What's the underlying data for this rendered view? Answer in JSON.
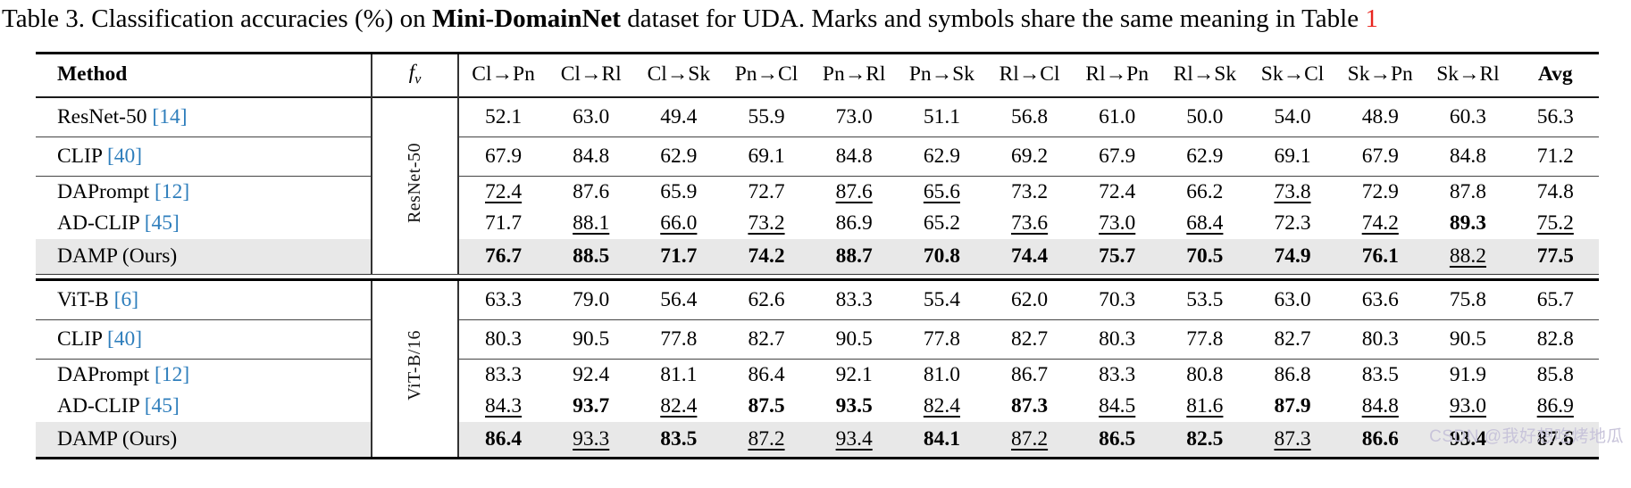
{
  "caption": {
    "prefix": "Table 3. Classification accuracies (%) on ",
    "dataset": "Mini-DomainNet",
    "middle": " dataset for UDA. Marks and symbols share the same meaning in Table ",
    "table_ref": "1"
  },
  "table": {
    "headers": {
      "method": "Method",
      "fv_main": "f",
      "fv_sub": "v",
      "columns": [
        "Cl→Pn",
        "Cl→Rl",
        "Cl→Sk",
        "Pn→Cl",
        "Pn→Rl",
        "Pn→Sk",
        "Rl→Cl",
        "Rl→Pn",
        "Rl→Sk",
        "Sk→Cl",
        "Sk→Pn",
        "Sk→Rl",
        "Avg"
      ]
    },
    "blocks": [
      {
        "backbone": "ResNet-50",
        "rows": [
          {
            "method": "ResNet-50",
            "ref": "[14]",
            "highlight": false,
            "rule_below": true,
            "cells": [
              [
                "52.1",
                "p"
              ],
              [
                "63.0",
                "p"
              ],
              [
                "49.4",
                "p"
              ],
              [
                "55.9",
                "p"
              ],
              [
                "73.0",
                "p"
              ],
              [
                "51.1",
                "p"
              ],
              [
                "56.8",
                "p"
              ],
              [
                "61.0",
                "p"
              ],
              [
                "50.0",
                "p"
              ],
              [
                "54.0",
                "p"
              ],
              [
                "48.9",
                "p"
              ],
              [
                "60.3",
                "p"
              ],
              [
                "56.3",
                "p"
              ]
            ]
          },
          {
            "method": "CLIP",
            "ref": "[40]",
            "highlight": false,
            "rule_below": true,
            "cells": [
              [
                "67.9",
                "p"
              ],
              [
                "84.8",
                "p"
              ],
              [
                "62.9",
                "p"
              ],
              [
                "69.1",
                "p"
              ],
              [
                "84.8",
                "p"
              ],
              [
                "62.9",
                "p"
              ],
              [
                "69.2",
                "p"
              ],
              [
                "67.9",
                "p"
              ],
              [
                "62.9",
                "p"
              ],
              [
                "69.1",
                "p"
              ],
              [
                "67.9",
                "p"
              ],
              [
                "84.8",
                "p"
              ],
              [
                "71.2",
                "p"
              ]
            ]
          },
          {
            "method": "DAPrompt",
            "ref": "[12]",
            "highlight": false,
            "rule_below": false,
            "cells": [
              [
                "72.4",
                "u"
              ],
              [
                "87.6",
                "p"
              ],
              [
                "65.9",
                "p"
              ],
              [
                "72.7",
                "p"
              ],
              [
                "87.6",
                "u"
              ],
              [
                "65.6",
                "u"
              ],
              [
                "73.2",
                "p"
              ],
              [
                "72.4",
                "p"
              ],
              [
                "66.2",
                "p"
              ],
              [
                "73.8",
                "u"
              ],
              [
                "72.9",
                "p"
              ],
              [
                "87.8",
                "p"
              ],
              [
                "74.8",
                "p"
              ]
            ]
          },
          {
            "method": "AD-CLIP",
            "ref": "[45]",
            "highlight": false,
            "rule_below": false,
            "cells": [
              [
                "71.7",
                "p"
              ],
              [
                "88.1",
                "u"
              ],
              [
                "66.0",
                "u"
              ],
              [
                "73.2",
                "u"
              ],
              [
                "86.9",
                "p"
              ],
              [
                "65.2",
                "p"
              ],
              [
                "73.6",
                "u"
              ],
              [
                "73.0",
                "u"
              ],
              [
                "68.4",
                "u"
              ],
              [
                "72.3",
                "p"
              ],
              [
                "74.2",
                "u"
              ],
              [
                "89.3",
                "b"
              ],
              [
                "75.2",
                "u"
              ]
            ]
          },
          {
            "method": "DAMP (Ours)",
            "ref": "",
            "highlight": true,
            "rule_below": false,
            "cells": [
              [
                "76.7",
                "b"
              ],
              [
                "88.5",
                "b"
              ],
              [
                "71.7",
                "b"
              ],
              [
                "74.2",
                "b"
              ],
              [
                "88.7",
                "b"
              ],
              [
                "70.8",
                "b"
              ],
              [
                "74.4",
                "b"
              ],
              [
                "75.7",
                "b"
              ],
              [
                "70.5",
                "b"
              ],
              [
                "74.9",
                "b"
              ],
              [
                "76.1",
                "b"
              ],
              [
                "88.2",
                "u"
              ],
              [
                "77.5",
                "b"
              ]
            ]
          }
        ]
      },
      {
        "backbone": "ViT-B/16",
        "rows": [
          {
            "method": "ViT-B",
            "ref": "[6]",
            "highlight": false,
            "rule_below": true,
            "cells": [
              [
                "63.3",
                "p"
              ],
              [
                "79.0",
                "p"
              ],
              [
                "56.4",
                "p"
              ],
              [
                "62.6",
                "p"
              ],
              [
                "83.3",
                "p"
              ],
              [
                "55.4",
                "p"
              ],
              [
                "62.0",
                "p"
              ],
              [
                "70.3",
                "p"
              ],
              [
                "53.5",
                "p"
              ],
              [
                "63.0",
                "p"
              ],
              [
                "63.6",
                "p"
              ],
              [
                "75.8",
                "p"
              ],
              [
                "65.7",
                "p"
              ]
            ]
          },
          {
            "method": "CLIP",
            "ref": "[40]",
            "highlight": false,
            "rule_below": true,
            "cells": [
              [
                "80.3",
                "p"
              ],
              [
                "90.5",
                "p"
              ],
              [
                "77.8",
                "p"
              ],
              [
                "82.7",
                "p"
              ],
              [
                "90.5",
                "p"
              ],
              [
                "77.8",
                "p"
              ],
              [
                "82.7",
                "p"
              ],
              [
                "80.3",
                "p"
              ],
              [
                "77.8",
                "p"
              ],
              [
                "82.7",
                "p"
              ],
              [
                "80.3",
                "p"
              ],
              [
                "90.5",
                "p"
              ],
              [
                "82.8",
                "p"
              ]
            ]
          },
          {
            "method": "DAPrompt",
            "ref": "[12]",
            "highlight": false,
            "rule_below": false,
            "cells": [
              [
                "83.3",
                "p"
              ],
              [
                "92.4",
                "p"
              ],
              [
                "81.1",
                "p"
              ],
              [
                "86.4",
                "p"
              ],
              [
                "92.1",
                "p"
              ],
              [
                "81.0",
                "p"
              ],
              [
                "86.7",
                "p"
              ],
              [
                "83.3",
                "p"
              ],
              [
                "80.8",
                "p"
              ],
              [
                "86.8",
                "p"
              ],
              [
                "83.5",
                "p"
              ],
              [
                "91.9",
                "p"
              ],
              [
                "85.8",
                "p"
              ]
            ]
          },
          {
            "method": "AD-CLIP",
            "ref": "[45]",
            "highlight": false,
            "rule_below": false,
            "cells": [
              [
                "84.3",
                "u"
              ],
              [
                "93.7",
                "b"
              ],
              [
                "82.4",
                "u"
              ],
              [
                "87.5",
                "b"
              ],
              [
                "93.5",
                "b"
              ],
              [
                "82.4",
                "u"
              ],
              [
                "87.3",
                "b"
              ],
              [
                "84.5",
                "u"
              ],
              [
                "81.6",
                "u"
              ],
              [
                "87.9",
                "b"
              ],
              [
                "84.8",
                "u"
              ],
              [
                "93.0",
                "u"
              ],
              [
                "86.9",
                "u"
              ]
            ]
          },
          {
            "method": "DAMP (Ours)",
            "ref": "",
            "highlight": true,
            "rule_below": false,
            "cells": [
              [
                "86.4",
                "b"
              ],
              [
                "93.3",
                "u"
              ],
              [
                "83.5",
                "b"
              ],
              [
                "87.2",
                "u"
              ],
              [
                "93.4",
                "u"
              ],
              [
                "84.1",
                "b"
              ],
              [
                "87.2",
                "u"
              ],
              [
                "86.5",
                "b"
              ],
              [
                "82.5",
                "b"
              ],
              [
                "87.3",
                "u"
              ],
              [
                "86.6",
                "b"
              ],
              [
                "93.4",
                "b"
              ],
              [
                "87.6",
                "b"
              ]
            ]
          }
        ]
      }
    ]
  },
  "watermark": "CSDN @我好想吃烤地瓜",
  "colors": {
    "ref_blue": "#2e7ebc",
    "link_red": "#e8251f",
    "highlight_bg": "#e8e8e8"
  }
}
